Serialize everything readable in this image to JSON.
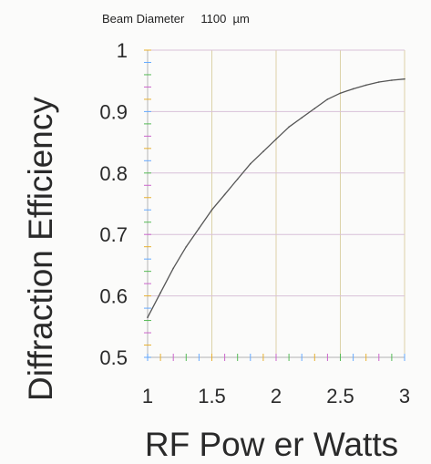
{
  "chart_data": {
    "type": "line",
    "subtitle": "Beam Diameter     1100  µm",
    "xlabel": "RF Pow er Watts",
    "ylabel": "Diffraction Efficiency",
    "xlim": [
      1,
      3
    ],
    "ylim": [
      0.5,
      1
    ],
    "x_ticks": [
      "1",
      "1.5",
      "2",
      "2.5",
      "3"
    ],
    "y_ticks": [
      "0.5",
      "0.6",
      "0.7",
      "0.8",
      "0.9",
      "1"
    ],
    "grid": true,
    "series": [
      {
        "color": "#555555",
        "x": [
          1.0,
          1.1,
          1.2,
          1.3,
          1.4,
          1.5,
          1.6,
          1.7,
          1.8,
          1.9,
          2.0,
          2.1,
          2.2,
          2.3,
          2.4,
          2.5,
          2.6,
          2.7,
          2.8,
          2.9,
          3.0
        ],
        "y": [
          0.565,
          0.605,
          0.645,
          0.68,
          0.71,
          0.74,
          0.765,
          0.79,
          0.815,
          0.835,
          0.855,
          0.875,
          0.89,
          0.905,
          0.92,
          0.93,
          0.937,
          0.943,
          0.948,
          0.951,
          0.953
        ]
      }
    ]
  },
  "colors": {
    "grid_vertical": "#dcd2a8",
    "grid_horizontal": "#d8c0d8",
    "axis": "#c0c0c0",
    "tick_marks": [
      "#66aaff",
      "#e8b030",
      "#cc66cc",
      "#55bb55"
    ]
  }
}
